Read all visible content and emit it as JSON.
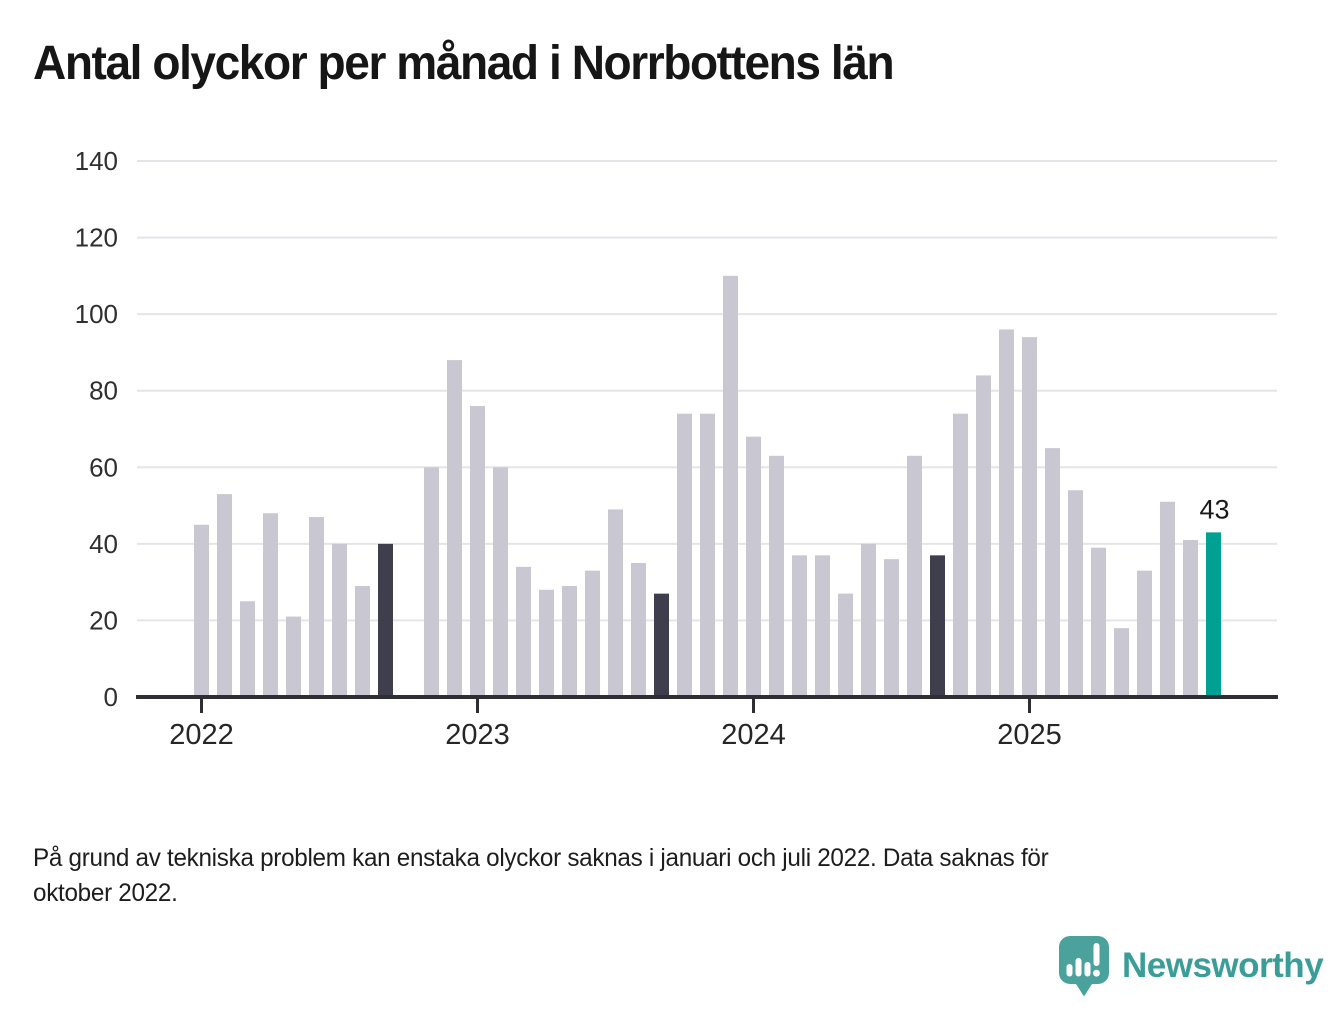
{
  "header": {
    "title": "Antal olyckor per månad i Norrbottens län"
  },
  "footnote": {
    "text": "På grund av tekniska problem kan enstaka olyckor saknas i januari och juli 2022. Data saknas för\noktober 2022."
  },
  "branding": {
    "wordmark": "Newsworthy",
    "logo_icon": "newsworthy-speech-bubble-chart-icon",
    "logo_color": "#4ba29d",
    "wordmark_color": "#3b9d98"
  },
  "chart_data": {
    "type": "bar",
    "title": "Antal olyckor per månad i Norrbottens län",
    "xlabel": "",
    "ylabel": "",
    "ylim": [
      0,
      140
    ],
    "yticks": [
      0,
      20,
      40,
      60,
      80,
      100,
      120,
      140
    ],
    "xticks": [
      "2022",
      "2023",
      "2024",
      "2025"
    ],
    "grid": "horizontal",
    "legend": "none",
    "x": [
      "2022-01",
      "2022-02",
      "2022-03",
      "2022-04",
      "2022-05",
      "2022-06",
      "2022-07",
      "2022-08",
      "2022-09",
      "2022-10",
      "2022-11",
      "2022-12",
      "2023-01",
      "2023-02",
      "2023-03",
      "2023-04",
      "2023-05",
      "2023-06",
      "2023-07",
      "2023-08",
      "2023-09",
      "2023-10",
      "2023-11",
      "2023-12",
      "2024-01",
      "2024-02",
      "2024-03",
      "2024-04",
      "2024-05",
      "2024-06",
      "2024-07",
      "2024-08",
      "2024-09",
      "2024-10",
      "2024-11",
      "2024-12",
      "2025-01",
      "2025-02",
      "2025-03",
      "2025-04",
      "2025-05",
      "2025-06",
      "2025-07",
      "2025-08",
      "2025-09"
    ],
    "values": [
      45,
      53,
      25,
      48,
      21,
      47,
      40,
      29,
      40,
      null,
      60,
      88,
      76,
      60,
      34,
      28,
      29,
      33,
      49,
      35,
      27,
      74,
      74,
      110,
      68,
      63,
      37,
      37,
      27,
      40,
      36,
      63,
      37,
      74,
      84,
      96,
      94,
      65,
      54,
      39,
      18,
      33,
      51,
      41,
      43
    ],
    "missing_months": [
      "2022-10"
    ],
    "dark_months": [
      "2022-09",
      "2023-09",
      "2024-09"
    ],
    "highlight_month": "2025-09",
    "annotation": {
      "month": "2025-09",
      "label": "43"
    },
    "colors": {
      "bar": "#c9c7d1",
      "dark": "#3f3e4c",
      "highlight": "#00a092",
      "grid": "#e6e4e9",
      "axis": "#2f2e33",
      "tick_label": "#2f2f2f",
      "year_label": "#262626",
      "annotation_label": "#1a1a1a"
    }
  }
}
